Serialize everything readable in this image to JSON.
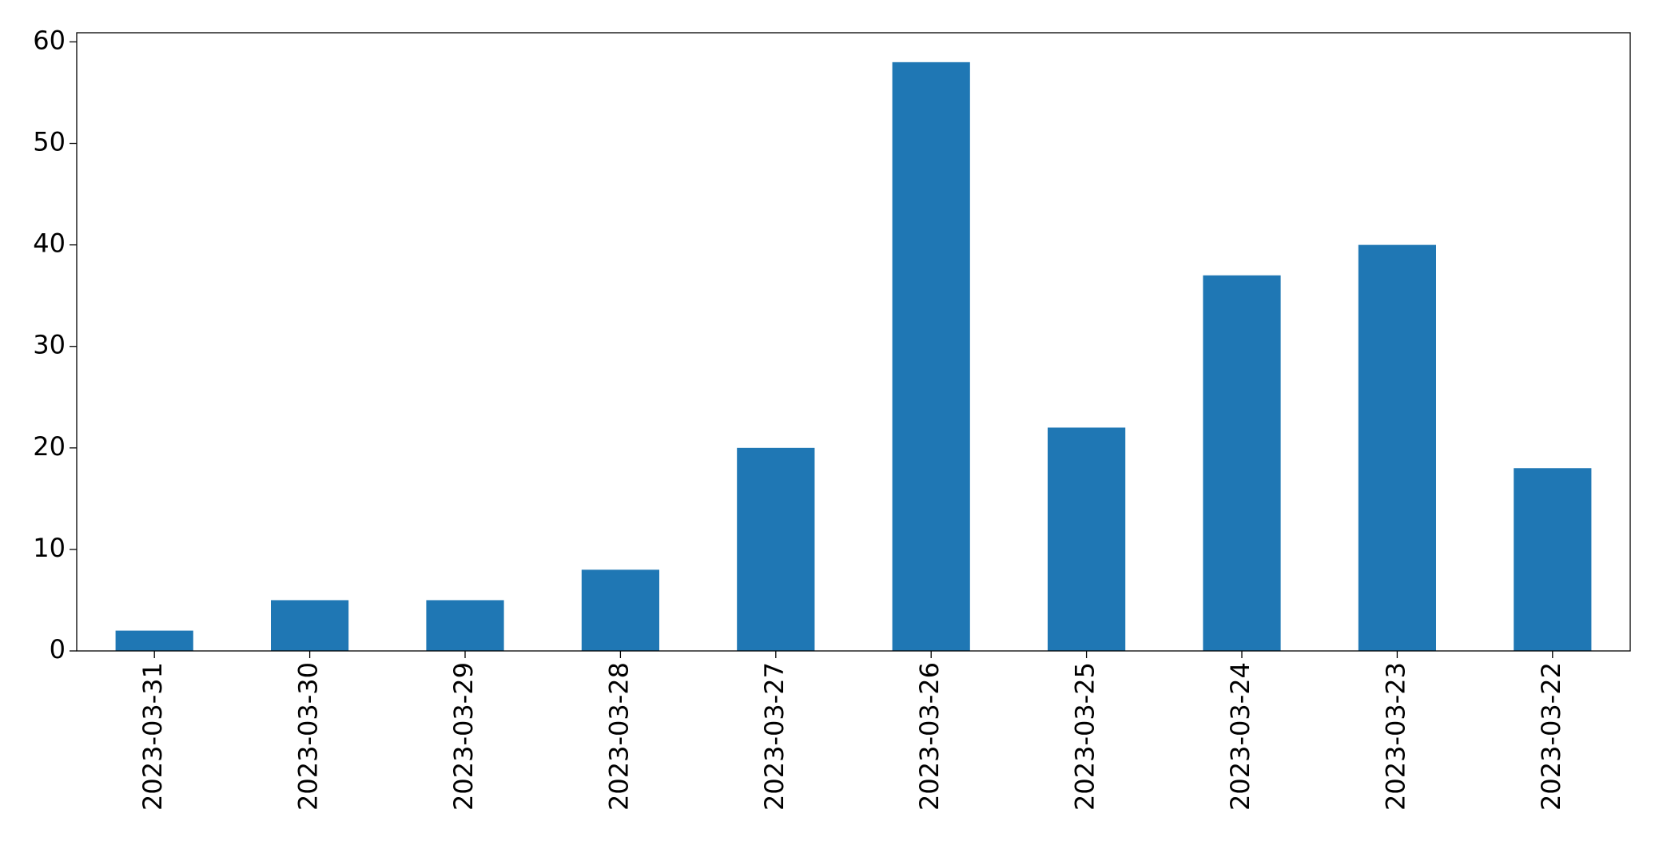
{
  "chart_data": {
    "type": "bar",
    "categories": [
      "2023-03-31",
      "2023-03-30",
      "2023-03-29",
      "2023-03-28",
      "2023-03-27",
      "2023-03-26",
      "2023-03-25",
      "2023-03-24",
      "2023-03-23",
      "2023-03-22"
    ],
    "values": [
      2,
      5,
      5,
      8,
      20,
      58,
      22,
      37,
      40,
      18
    ],
    "color": "#1f77b4",
    "ylim": [
      0,
      60.9
    ],
    "yticks": [
      0,
      10,
      20,
      30,
      40,
      50,
      60
    ],
    "grid": false
  }
}
